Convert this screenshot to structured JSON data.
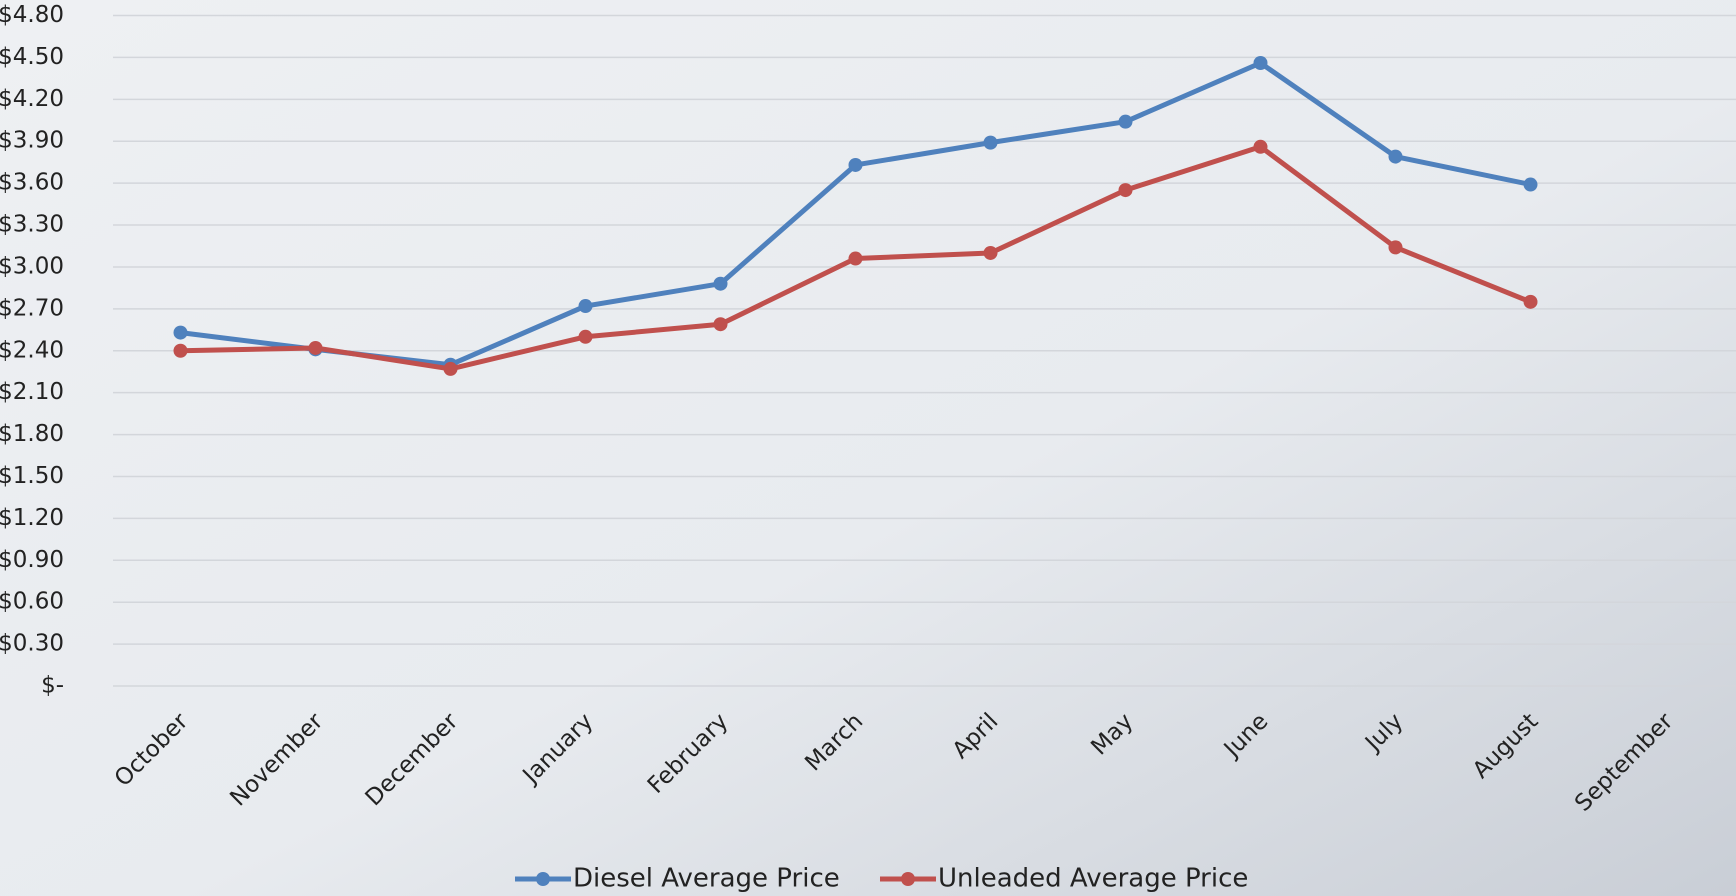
{
  "chart_data": {
    "type": "line",
    "categories": [
      "October",
      "November",
      "December",
      "January",
      "February",
      "March",
      "April",
      "May",
      "June",
      "July",
      "August",
      "September"
    ],
    "series": [
      {
        "name": "Diesel Average Price",
        "color": "#4f81bd",
        "values": [
          2.53,
          2.41,
          2.3,
          2.72,
          2.88,
          3.73,
          3.89,
          4.04,
          4.46,
          3.79,
          3.59,
          null
        ]
      },
      {
        "name": "Unleaded Average Price",
        "color": "#c0504d",
        "values": [
          2.4,
          2.42,
          2.27,
          2.5,
          2.59,
          3.06,
          3.1,
          3.55,
          3.86,
          3.14,
          2.75,
          null
        ]
      }
    ],
    "ylim": [
      0,
      4.8
    ],
    "yticks": [
      {
        "value": 0,
        "label": "$-"
      },
      {
        "value": 0.3,
        "label": "$0.30"
      },
      {
        "value": 0.6,
        "label": "$0.60"
      },
      {
        "value": 0.9,
        "label": "$0.90"
      },
      {
        "value": 1.2,
        "label": "$1.20"
      },
      {
        "value": 1.5,
        "label": "$1.50"
      },
      {
        "value": 1.8,
        "label": "$1.80"
      },
      {
        "value": 2.1,
        "label": "$2.10"
      },
      {
        "value": 2.4,
        "label": "$2.40"
      },
      {
        "value": 2.7,
        "label": "$2.70"
      },
      {
        "value": 3.0,
        "label": "$3.00"
      },
      {
        "value": 3.3,
        "label": "$3.30"
      },
      {
        "value": 3.6,
        "label": "$3.60"
      },
      {
        "value": 3.9,
        "label": "$3.90"
      },
      {
        "value": 4.2,
        "label": "$4.20"
      },
      {
        "value": 4.5,
        "label": "$4.50"
      },
      {
        "value": 4.8,
        "label": "$4.80"
      }
    ],
    "grid": true,
    "legend": "bottom"
  }
}
